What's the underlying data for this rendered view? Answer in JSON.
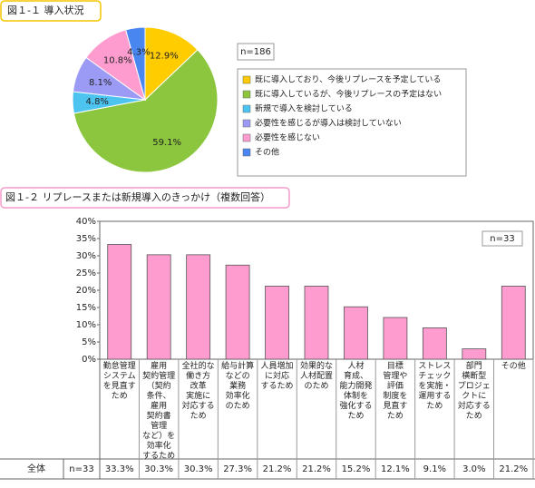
{
  "chart_data": [
    {
      "type": "pie",
      "title": "図１-１ 導入状況",
      "n_label": "n=186",
      "categories": [
        "既に導入しており、今後リプレースを予定している",
        "既に導入しているが、今後リプレースの予定はない",
        "新規で導入を検討している",
        "必要性を感じるが導入は検討していない",
        "必要性を感じない",
        "その他"
      ],
      "values": [
        12.9,
        59.1,
        4.8,
        8.1,
        10.8,
        4.3
      ],
      "value_labels": [
        "12.9%",
        "59.1%",
        "4.8%",
        "8.1%",
        "10.8%",
        "4.3%"
      ],
      "colors": [
        "#ffcc00",
        "#8cc63e",
        "#4dc4f0",
        "#9b9bf5",
        "#ff9ccf",
        "#4a86f0"
      ]
    },
    {
      "type": "bar",
      "title": "図１-２ リプレースまたは新規導入のきっかけ（複数回答）",
      "n_label": "n=33",
      "categories": [
        "勤怠管理\nシステム\nを見直す\nため",
        "雇用\n契約管理\n（契約\n条件、\n雇用\n契約書\n管理\nなど）を\n効率化\nするため",
        "全社的な\n働き方\n改革\n実施に\n対応する\nため",
        "給与計算\nなどの\n業務\n効率化\nのため",
        "人員増加\nに対応\nするため",
        "効果的な\n人材配置\nのため",
        "人材\n育成、\n能力開発\n体制を\n強化する\nため",
        "目標\n管理や\n評価\n制度を\n見直す\nため",
        "ストレス\nチェック\nを実施・\n運用する\nため",
        "部門\n横断型\nプロジェ\nクトに\n対応する\nため",
        "その他"
      ],
      "values": [
        33.3,
        30.3,
        30.3,
        27.3,
        21.2,
        21.2,
        15.2,
        12.1,
        9.1,
        3.0,
        21.2
      ],
      "value_labels": [
        "33.3%",
        "30.3%",
        "30.3%",
        "27.3%",
        "21.2%",
        "21.2%",
        "15.2%",
        "12.1%",
        "9.1%",
        "3.0%",
        "21.2%"
      ],
      "color": "#ff9ccf",
      "ylim": [
        0,
        40
      ],
      "yticks": [
        {
          "value": 0,
          "label": "0%"
        },
        {
          "value": 5,
          "label": "5%"
        },
        {
          "value": 10,
          "label": "10%"
        },
        {
          "value": 15,
          "label": "15%"
        },
        {
          "value": 20,
          "label": "20%"
        },
        {
          "value": 25,
          "label": "25%"
        },
        {
          "value": 30,
          "label": "30%"
        },
        {
          "value": 35,
          "label": "35%"
        },
        {
          "value": 40,
          "label": "40%"
        }
      ],
      "grid": false,
      "table_row_label": "全体",
      "table_row_n": "n=33"
    }
  ]
}
